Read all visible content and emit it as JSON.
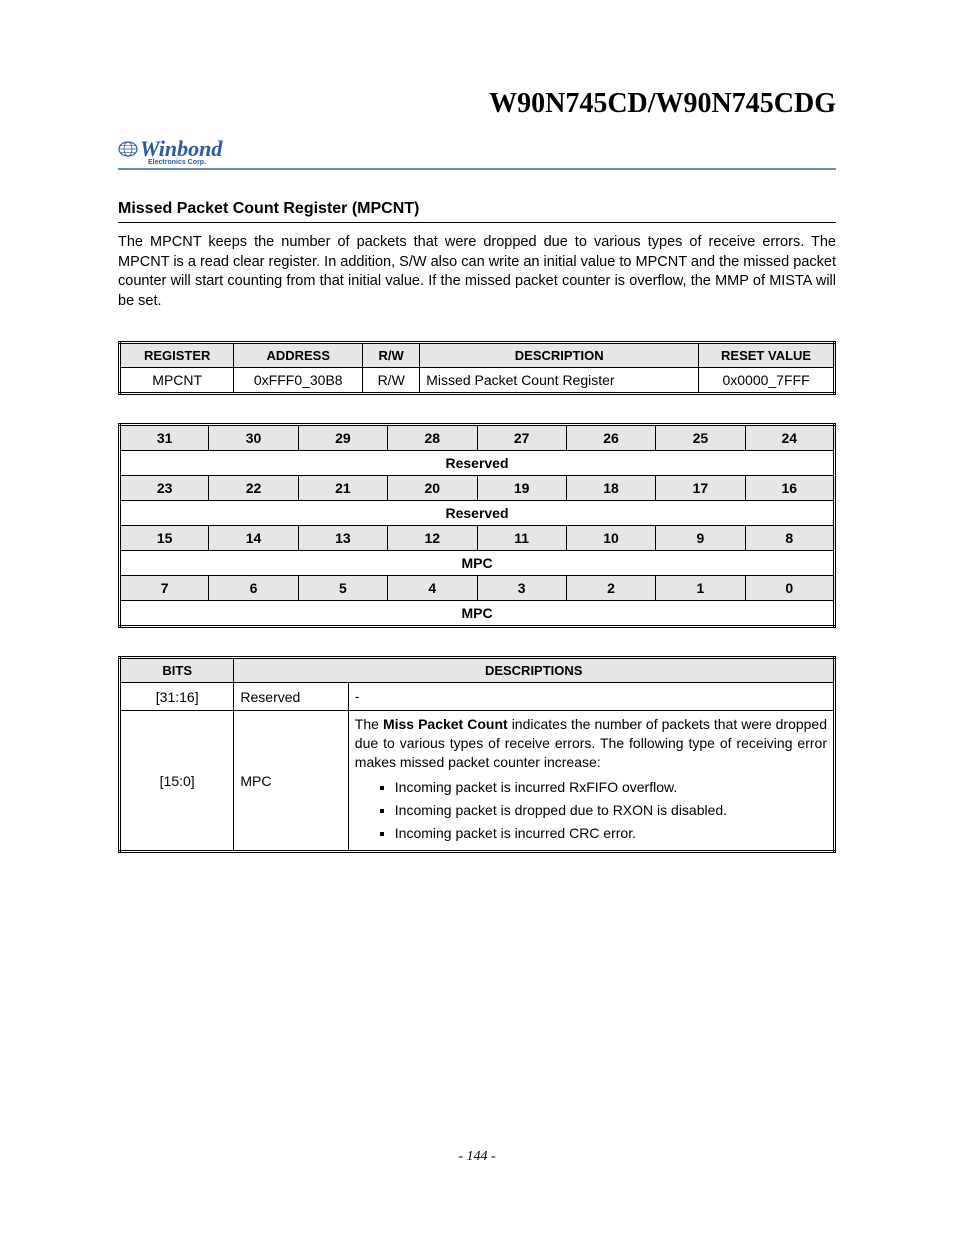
{
  "doc_title": "W90N745CD/W90N745CDG",
  "logo": {
    "brand": "Winbond",
    "sub": "Electronics Corp."
  },
  "section_title": "Missed Packet Count Register (MPCNT)",
  "body_text": "The MPCNT keeps the number of packets that were dropped due to various types of receive errors. The MPCNT is a read clear register. In addition, S/W also can write an initial value to MPCNT and the missed packet counter will start counting from that initial value. If the missed packet counter is overflow, the MMP of MISTA will be set.",
  "reg_table": {
    "headers": [
      "REGISTER",
      "ADDRESS",
      "R/W",
      "DESCRIPTION",
      "RESET VALUE"
    ],
    "row": {
      "register": "MPCNT",
      "address": "0xFFF0_30B8",
      "rw": "R/W",
      "description": "Missed Packet Count Register",
      "reset_value": "0x0000_7FFF"
    },
    "col_widths": [
      "16%",
      "18%",
      "8%",
      "39%",
      "19%"
    ]
  },
  "bit_table": {
    "rows": [
      {
        "type": "bits",
        "cells": [
          "31",
          "30",
          "29",
          "28",
          "27",
          "26",
          "25",
          "24"
        ]
      },
      {
        "type": "span",
        "label": "Reserved"
      },
      {
        "type": "bits",
        "cells": [
          "23",
          "22",
          "21",
          "20",
          "19",
          "18",
          "17",
          "16"
        ]
      },
      {
        "type": "span",
        "label": "Reserved"
      },
      {
        "type": "bits",
        "cells": [
          "15",
          "14",
          "13",
          "12",
          "11",
          "10",
          "9",
          "8"
        ]
      },
      {
        "type": "span",
        "label": "MPC"
      },
      {
        "type": "bits",
        "cells": [
          "7",
          "6",
          "5",
          "4",
          "3",
          "2",
          "1",
          "0"
        ]
      },
      {
        "type": "span",
        "label": "MPC"
      }
    ]
  },
  "desc_table": {
    "headers": [
      "BITS",
      "DESCRIPTIONS"
    ],
    "rows": [
      {
        "bits": "[31:16]",
        "name": "Reserved",
        "desc_text": "-",
        "bullets": []
      },
      {
        "bits": "[15:0]",
        "name": "MPC",
        "desc_intro_prefix": "The ",
        "desc_intro_bold": "Miss Packet Count",
        "desc_intro_suffix": " indicates the number of packets that were dropped due to various types of receive errors. The following type of receiving error makes missed packet counter increase:",
        "bullets": [
          "Incoming packet is incurred RxFIFO overflow.",
          "Incoming packet is dropped due to RXON is disabled.",
          "Incoming packet is incurred CRC error."
        ]
      }
    ],
    "col_widths": [
      "16%",
      "16%",
      "68%"
    ]
  },
  "page_number": "- 144 -",
  "colors": {
    "header_bg": "#e6e6e6",
    "border": "#000000",
    "logo": "#2b5aa0",
    "rule": "#6b8fb8"
  }
}
